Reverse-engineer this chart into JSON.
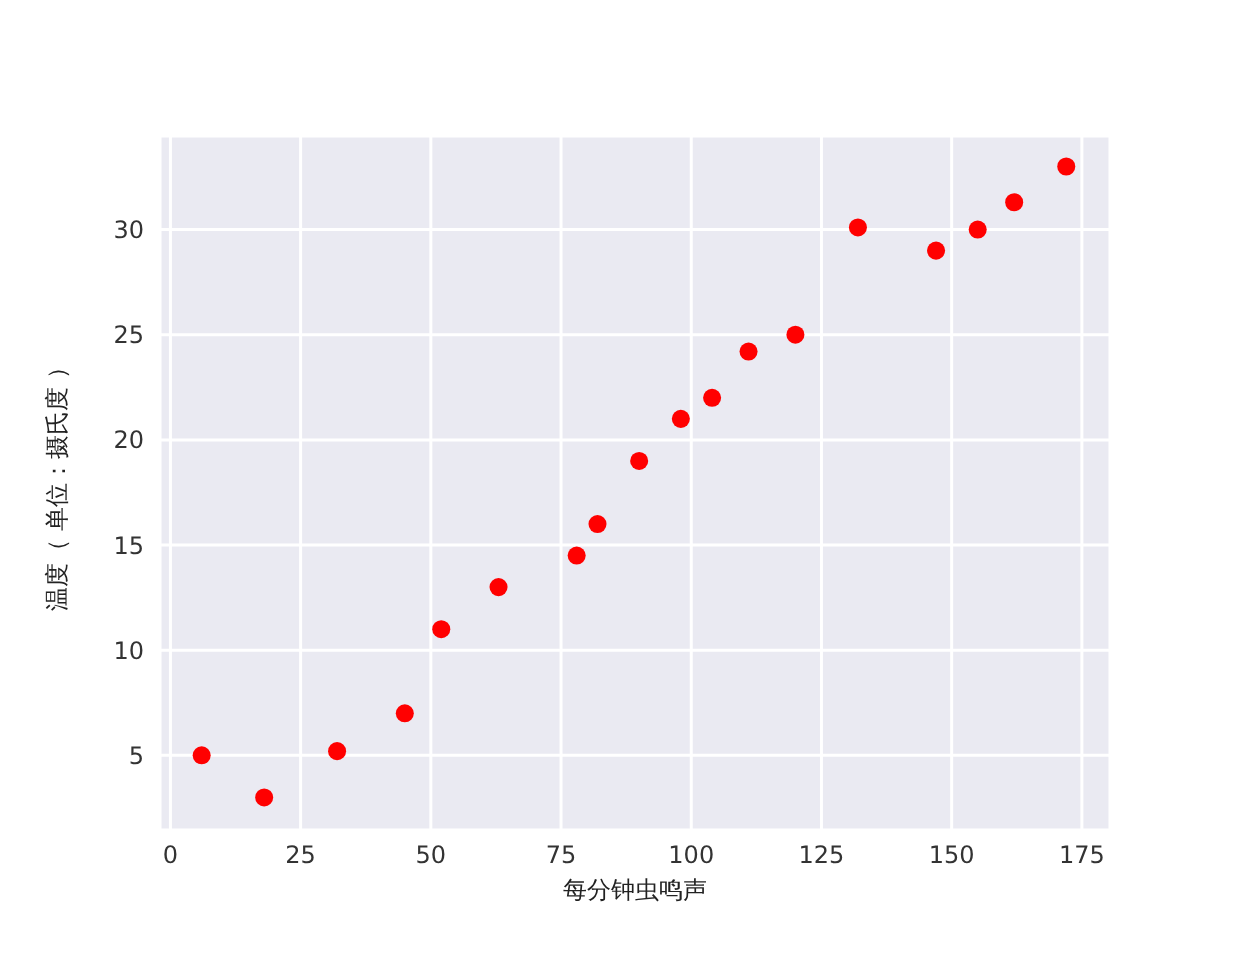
{
  "chart_data": {
    "type": "scatter",
    "xlabel": "每分钟虫鸣声",
    "ylabel": "温度（ 单位：摄氏度 ）",
    "x": [
      6,
      18,
      32,
      45,
      52,
      63,
      78,
      82,
      90,
      98,
      104,
      111,
      120,
      132,
      147,
      155,
      162,
      172
    ],
    "series": [
      {
        "color": "#ff0000",
        "values": [
          5,
          3,
          5.2,
          7,
          11,
          13,
          14.5,
          16,
          19,
          21,
          22,
          24.2,
          25,
          30.1,
          29,
          30,
          31.3,
          33
        ]
      }
    ],
    "xlim": [
      -2,
      180.4
    ],
    "ylim": [
      1.45,
      34.45
    ],
    "xticks": [
      0,
      25,
      50,
      75,
      100,
      125,
      150,
      175
    ],
    "yticks": [
      5,
      10,
      15,
      20,
      25,
      30
    ],
    "grid": true,
    "marker": "circle"
  }
}
